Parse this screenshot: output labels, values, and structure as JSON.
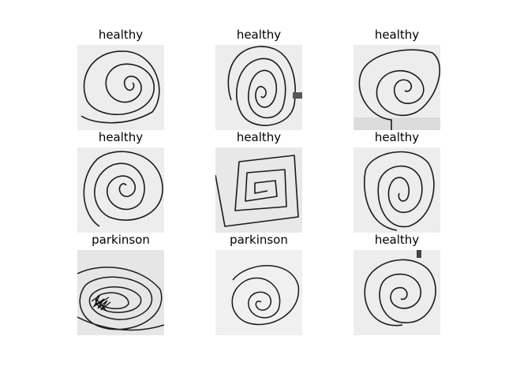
{
  "panels": [
    {
      "label": "healthy"
    },
    {
      "label": "healthy"
    },
    {
      "label": "healthy"
    },
    {
      "label": "healthy"
    },
    {
      "label": "healthy"
    },
    {
      "label": "healthy"
    },
    {
      "label": "parkinson"
    },
    {
      "label": "parkinson"
    },
    {
      "label": "healthy"
    }
  ],
  "colors": {
    "ink": "#1a1a1a",
    "paper": "#ececec",
    "background": "#ffffff"
  }
}
